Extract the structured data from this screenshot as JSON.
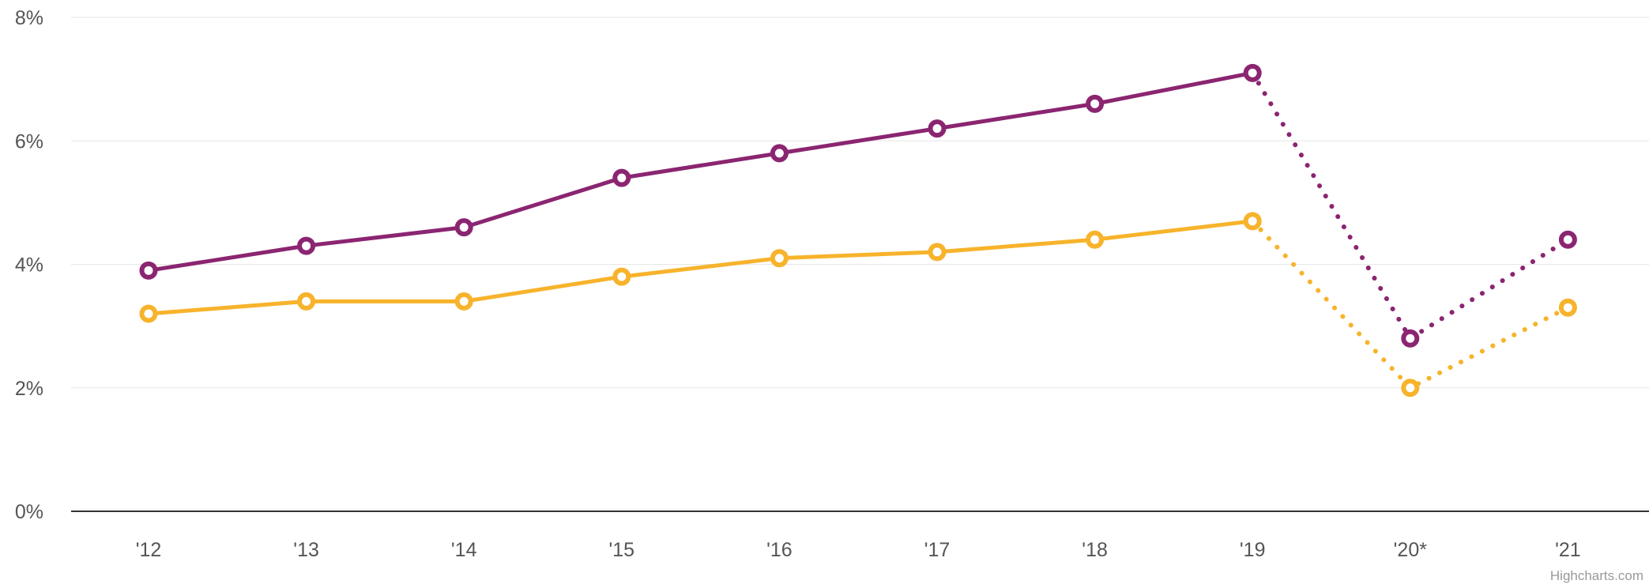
{
  "chart_data": {
    "type": "line",
    "title": "",
    "xlabel": "",
    "ylabel": "",
    "categories": [
      "'12",
      "'13",
      "'14",
      "'15",
      "'16",
      "'17",
      "'18",
      "'19",
      "'20*",
      "'21"
    ],
    "ylim": [
      0,
      8
    ],
    "yticks": [
      0,
      2,
      4,
      6,
      8
    ],
    "ytick_suffix": "%",
    "grid": true,
    "legend": "none",
    "projected_from_index": 7,
    "series": [
      {
        "values": [
          3.9,
          4.3,
          4.6,
          5.4,
          5.8,
          6.2,
          6.6,
          7.1,
          2.8,
          4.4
        ],
        "color": "#8B2571"
      },
      {
        "values": [
          3.2,
          3.4,
          3.4,
          3.8,
          4.1,
          4.2,
          4.4,
          4.7,
          2.0,
          3.3
        ],
        "color": "#F7B32B"
      }
    ]
  },
  "credit": "Highcharts.com"
}
